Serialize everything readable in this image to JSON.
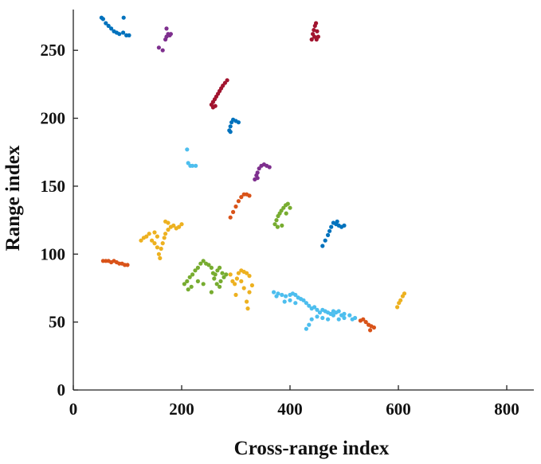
{
  "chart_data": {
    "type": "scatter",
    "title": "",
    "xlabel": "Cross-range index",
    "ylabel": "Range index",
    "xlim": [
      0,
      850
    ],
    "ylim": [
      0,
      280
    ],
    "xticks": [
      0,
      200,
      400,
      600,
      800
    ],
    "yticks": [
      0,
      50,
      100,
      150,
      200,
      250
    ],
    "grid": false,
    "legend": "none",
    "series": [
      {
        "color": "#0072bd",
        "points": [
          [
            52,
            274
          ],
          [
            55,
            273
          ],
          [
            60,
            270
          ],
          [
            65,
            268
          ],
          [
            70,
            266
          ],
          [
            75,
            264
          ],
          [
            80,
            263
          ],
          [
            85,
            262
          ],
          [
            92,
            263
          ],
          [
            98,
            261
          ],
          [
            103,
            261
          ],
          [
            93,
            274
          ],
          [
            288,
            191
          ],
          [
            290,
            194
          ],
          [
            292,
            197
          ],
          [
            295,
            199
          ],
          [
            300,
            198
          ],
          [
            305,
            197
          ],
          [
            290,
            190
          ],
          [
            460,
            106
          ],
          [
            465,
            110
          ],
          [
            470,
            114
          ],
          [
            473,
            117
          ],
          [
            476,
            120
          ],
          [
            480,
            123
          ],
          [
            485,
            122
          ],
          [
            490,
            121
          ],
          [
            495,
            120
          ],
          [
            500,
            121
          ],
          [
            487,
            124
          ]
        ]
      },
      {
        "color": "#7e2f8e",
        "points": [
          [
            158,
            252
          ],
          [
            165,
            250
          ],
          [
            170,
            258
          ],
          [
            172,
            260
          ],
          [
            175,
            262
          ],
          [
            178,
            261
          ],
          [
            180,
            262
          ],
          [
            172,
            266
          ],
          [
            335,
            155
          ],
          [
            338,
            158
          ],
          [
            340,
            160
          ],
          [
            343,
            163
          ],
          [
            347,
            165
          ],
          [
            352,
            166
          ],
          [
            357,
            165
          ],
          [
            362,
            164
          ],
          [
            340,
            156
          ]
        ]
      },
      {
        "color": "#a2142f",
        "points": [
          [
            440,
            258
          ],
          [
            442,
            262
          ],
          [
            444,
            265
          ],
          [
            446,
            268
          ],
          [
            448,
            270
          ],
          [
            450,
            264
          ],
          [
            452,
            260
          ],
          [
            445,
            260
          ],
          [
            449,
            258
          ],
          [
            255,
            210
          ],
          [
            258,
            212
          ],
          [
            261,
            214
          ],
          [
            264,
            216
          ],
          [
            267,
            218
          ],
          [
            270,
            220
          ],
          [
            273,
            222
          ],
          [
            276,
            224
          ],
          [
            280,
            226
          ],
          [
            284,
            228
          ],
          [
            262,
            209
          ],
          [
            258,
            208
          ]
        ]
      },
      {
        "color": "#4dbeee",
        "points": [
          [
            210,
            177
          ],
          [
            212,
            167
          ],
          [
            216,
            165
          ],
          [
            220,
            165
          ],
          [
            226,
            165
          ],
          [
            370,
            72
          ],
          [
            378,
            71
          ],
          [
            385,
            70
          ],
          [
            392,
            69
          ],
          [
            400,
            70
          ],
          [
            405,
            71
          ],
          [
            410,
            70
          ],
          [
            415,
            68
          ],
          [
            420,
            67
          ],
          [
            425,
            66
          ],
          [
            430,
            64
          ],
          [
            435,
            62
          ],
          [
            440,
            60
          ],
          [
            445,
            61
          ],
          [
            450,
            59
          ],
          [
            455,
            57
          ],
          [
            460,
            59
          ],
          [
            465,
            58
          ],
          [
            470,
            57
          ],
          [
            475,
            56
          ],
          [
            480,
            58
          ],
          [
            485,
            57
          ],
          [
            490,
            58
          ],
          [
            495,
            55
          ],
          [
            500,
            56
          ],
          [
            510,
            55
          ],
          [
            515,
            52
          ],
          [
            520,
            53
          ],
          [
            390,
            65
          ],
          [
            400,
            66
          ],
          [
            410,
            64
          ],
          [
            440,
            52
          ],
          [
            450,
            54
          ],
          [
            460,
            53
          ],
          [
            470,
            52
          ],
          [
            480,
            55
          ],
          [
            490,
            52
          ],
          [
            500,
            53
          ],
          [
            430,
            45
          ],
          [
            435,
            48
          ],
          [
            375,
            69
          ]
        ]
      },
      {
        "color": "#d95319",
        "points": [
          [
            290,
            127
          ],
          [
            295,
            131
          ],
          [
            300,
            135
          ],
          [
            305,
            139
          ],
          [
            310,
            142
          ],
          [
            315,
            144
          ],
          [
            320,
            144
          ],
          [
            325,
            143
          ],
          [
            55,
            95
          ],
          [
            60,
            95
          ],
          [
            65,
            95
          ],
          [
            70,
            94
          ],
          [
            75,
            95
          ],
          [
            80,
            94
          ],
          [
            85,
            93
          ],
          [
            90,
            93
          ],
          [
            95,
            92
          ],
          [
            100,
            92
          ],
          [
            530,
            51
          ],
          [
            535,
            52
          ],
          [
            540,
            50
          ],
          [
            545,
            48
          ],
          [
            550,
            47
          ],
          [
            555,
            46
          ],
          [
            548,
            44
          ]
        ]
      },
      {
        "color": "#edb120",
        "points": [
          [
            125,
            110
          ],
          [
            130,
            112
          ],
          [
            135,
            113
          ],
          [
            140,
            115
          ],
          [
            145,
            110
          ],
          [
            150,
            108
          ],
          [
            155,
            105
          ],
          [
            158,
            100
          ],
          [
            160,
            97
          ],
          [
            162,
            104
          ],
          [
            165,
            108
          ],
          [
            168,
            112
          ],
          [
            170,
            115
          ],
          [
            175,
            118
          ],
          [
            180,
            120
          ],
          [
            185,
            121
          ],
          [
            190,
            119
          ],
          [
            195,
            120
          ],
          [
            200,
            122
          ],
          [
            170,
            124
          ],
          [
            175,
            123
          ],
          [
            150,
            116
          ],
          [
            155,
            113
          ],
          [
            290,
            85
          ],
          [
            294,
            80
          ],
          [
            298,
            78
          ],
          [
            302,
            82
          ],
          [
            305,
            86
          ],
          [
            310,
            88
          ],
          [
            315,
            87
          ],
          [
            320,
            86
          ],
          [
            325,
            84
          ],
          [
            310,
            80
          ],
          [
            315,
            75
          ],
          [
            320,
            65
          ],
          [
            322,
            60
          ],
          [
            300,
            70
          ],
          [
            330,
            77
          ],
          [
            325,
            72
          ],
          [
            598,
            61
          ],
          [
            601,
            64
          ],
          [
            604,
            66
          ],
          [
            608,
            69
          ],
          [
            611,
            71
          ]
        ]
      },
      {
        "color": "#77ac30",
        "points": [
          [
            205,
            78
          ],
          [
            210,
            80
          ],
          [
            215,
            83
          ],
          [
            220,
            85
          ],
          [
            225,
            88
          ],
          [
            230,
            90
          ],
          [
            235,
            93
          ],
          [
            240,
            95
          ],
          [
            245,
            93
          ],
          [
            250,
            92
          ],
          [
            255,
            90
          ],
          [
            258,
            86
          ],
          [
            262,
            85
          ],
          [
            266,
            88
          ],
          [
            270,
            90
          ],
          [
            275,
            86
          ],
          [
            278,
            83
          ],
          [
            282,
            85
          ],
          [
            260,
            82
          ],
          [
            265,
            78
          ],
          [
            270,
            76
          ],
          [
            255,
            72
          ],
          [
            240,
            78
          ],
          [
            230,
            80
          ],
          [
            218,
            76
          ],
          [
            212,
            74
          ],
          [
            272,
            80
          ],
          [
            372,
            122
          ],
          [
            375,
            125
          ],
          [
            378,
            128
          ],
          [
            381,
            130
          ],
          [
            384,
            132
          ],
          [
            388,
            134
          ],
          [
            392,
            136
          ],
          [
            396,
            137
          ],
          [
            400,
            134
          ],
          [
            385,
            121
          ],
          [
            377,
            120
          ],
          [
            393,
            130
          ]
        ]
      }
    ]
  }
}
